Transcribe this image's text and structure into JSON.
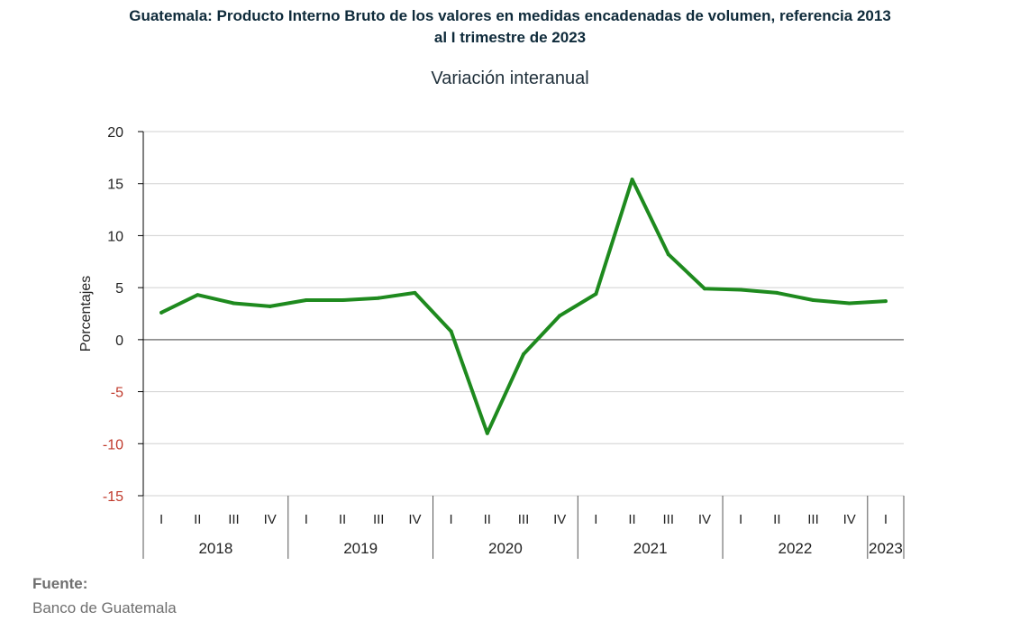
{
  "title_line1": "Guatemala: Producto Interno Bruto de los valores en medidas encadenadas  de volumen, referencia 2013",
  "title_line2": "al I trimestre de 2023",
  "subtitle": "Variación interanual",
  "source_label": "Fuente:",
  "source_name": "Banco de Guatemala",
  "colors": {
    "line": "#1e8a1e",
    "grid": "#d0d0d0",
    "zero_line": "#7f7f7f",
    "negative_tick": "#c0392b",
    "text": "#222222"
  },
  "chart_data": {
    "type": "line",
    "ylabel": "Porcentajes",
    "ylim": [
      -15,
      20
    ],
    "yticks": [
      20,
      15,
      10,
      5,
      0,
      -5,
      -10,
      -15
    ],
    "grid": true,
    "x": [
      "I",
      "II",
      "III",
      "IV",
      "I",
      "II",
      "III",
      "IV",
      "I",
      "II",
      "III",
      "IV",
      "I",
      "II",
      "III",
      "IV",
      "I",
      "II",
      "III",
      "IV",
      "I"
    ],
    "years": [
      {
        "label": "2018",
        "quarters": 4
      },
      {
        "label": "2019",
        "quarters": 4
      },
      {
        "label": "2020",
        "quarters": 4
      },
      {
        "label": "2021",
        "quarters": 4
      },
      {
        "label": "2022",
        "quarters": 4
      },
      {
        "label": "2023",
        "quarters": 1
      }
    ],
    "series": [
      {
        "values": [
          2.6,
          4.3,
          3.5,
          3.2,
          3.8,
          3.8,
          4.0,
          4.5,
          0.8,
          -9.0,
          -1.4,
          2.3,
          4.4,
          15.4,
          8.2,
          4.9,
          4.8,
          4.5,
          3.8,
          3.5,
          3.7
        ]
      }
    ]
  }
}
